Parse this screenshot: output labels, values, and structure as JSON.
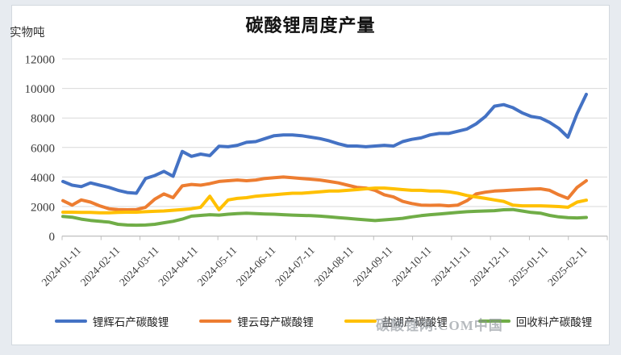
{
  "page": {
    "background": "#e7ebf0",
    "card_background": "#ffffff"
  },
  "header": {
    "title": "碳酸锂周度产量",
    "y_unit_label": "实物吨"
  },
  "watermark": {
    "text": "碳酸锂网.COM中国"
  },
  "chart_data": {
    "type": "line",
    "title": "碳酸锂周度产量",
    "ylabel": "实物吨",
    "ylim": [
      0,
      12000
    ],
    "y_ticks": [
      0,
      2000,
      4000,
      6000,
      8000,
      10000,
      12000
    ],
    "grid": true,
    "legend_position": "bottom",
    "x_tick_labels": [
      "2024-01-11",
      "2024-02-11",
      "2024-03-11",
      "2024-04-11",
      "2024-05-11",
      "2024-06-11",
      "2024-07-11",
      "2024-08-11",
      "2024-09-11",
      "2024-10-11",
      "2024-11-11",
      "2024-12-11",
      "2025-01-11",
      "2025-02-11"
    ],
    "x_dates": [
      "2024-01-11",
      "2024-01-18",
      "2024-01-25",
      "2024-02-01",
      "2024-02-08",
      "2024-02-15",
      "2024-02-22",
      "2024-02-29",
      "2024-03-07",
      "2024-03-14",
      "2024-03-21",
      "2024-03-28",
      "2024-04-04",
      "2024-04-11",
      "2024-04-18",
      "2024-04-25",
      "2024-05-02",
      "2024-05-09",
      "2024-05-16",
      "2024-05-23",
      "2024-05-30",
      "2024-06-06",
      "2024-06-13",
      "2024-06-20",
      "2024-06-27",
      "2024-07-04",
      "2024-07-11",
      "2024-07-18",
      "2024-07-25",
      "2024-08-01",
      "2024-08-08",
      "2024-08-15",
      "2024-08-22",
      "2024-08-29",
      "2024-09-05",
      "2024-09-12",
      "2024-09-19",
      "2024-09-26",
      "2024-10-03",
      "2024-10-10",
      "2024-10-17",
      "2024-10-24",
      "2024-10-31",
      "2024-11-07",
      "2024-11-14",
      "2024-11-21",
      "2024-11-28",
      "2024-12-05",
      "2024-12-12",
      "2024-12-19",
      "2024-12-26",
      "2025-01-02",
      "2025-01-09",
      "2025-01-16",
      "2025-01-23",
      "2025-01-30",
      "2025-02-06",
      "2025-02-13"
    ],
    "series": [
      {
        "name": "锂辉石产碳酸锂",
        "key": "spodumene",
        "color": "#4472C4",
        "values": [
          3700,
          3450,
          3350,
          3600,
          3450,
          3300,
          3100,
          2950,
          2900,
          3900,
          4100,
          4380,
          4050,
          5730,
          5400,
          5550,
          5450,
          6090,
          6050,
          6150,
          6350,
          6400,
          6600,
          6800,
          6850,
          6850,
          6800,
          6700,
          6600,
          6450,
          6250,
          6100,
          6100,
          6050,
          6100,
          6150,
          6100,
          6400,
          6550,
          6650,
          6850,
          6950,
          6950,
          7100,
          7250,
          7600,
          8100,
          8800,
          8900,
          8700,
          8350,
          8100,
          8000,
          7700,
          7300,
          6700,
          8300,
          9600
        ]
      },
      {
        "name": "锂云母产碳酸锂",
        "key": "lepidolite",
        "color": "#ED7D31",
        "values": [
          2400,
          2100,
          2450,
          2300,
          2050,
          1850,
          1800,
          1780,
          1800,
          1950,
          2500,
          2850,
          2600,
          3400,
          3500,
          3450,
          3550,
          3700,
          3750,
          3800,
          3750,
          3800,
          3900,
          3950,
          4000,
          3950,
          3900,
          3850,
          3800,
          3700,
          3600,
          3450,
          3300,
          3250,
          3100,
          2800,
          2650,
          2350,
          2200,
          2100,
          2080,
          2100,
          2050,
          2100,
          2400,
          2850,
          2970,
          3050,
          3080,
          3120,
          3150,
          3180,
          3200,
          3100,
          2800,
          2550,
          3300,
          3750
        ]
      },
      {
        "name": "盐湖产碳酸锂",
        "key": "salt-lake",
        "color": "#FFC000",
        "values": [
          1620,
          1620,
          1600,
          1600,
          1580,
          1580,
          1600,
          1620,
          1620,
          1650,
          1680,
          1700,
          1750,
          1800,
          1850,
          1950,
          2700,
          1780,
          2450,
          2550,
          2600,
          2700,
          2750,
          2800,
          2850,
          2900,
          2900,
          2950,
          3000,
          3050,
          3050,
          3100,
          3150,
          3200,
          3250,
          3250,
          3200,
          3150,
          3100,
          3100,
          3050,
          3050,
          3000,
          2900,
          2750,
          2650,
          2550,
          2450,
          2350,
          2100,
          2050,
          2050,
          2050,
          2030,
          2000,
          1950,
          2300,
          2430
        ]
      },
      {
        "name": "回收料产碳酸锂",
        "key": "recycled",
        "color": "#70AD47",
        "values": [
          1330,
          1280,
          1150,
          1060,
          1000,
          950,
          800,
          750,
          740,
          750,
          800,
          900,
          1000,
          1150,
          1350,
          1400,
          1450,
          1420,
          1480,
          1520,
          1550,
          1520,
          1500,
          1480,
          1450,
          1420,
          1400,
          1380,
          1350,
          1300,
          1250,
          1200,
          1150,
          1100,
          1050,
          1100,
          1150,
          1200,
          1300,
          1380,
          1450,
          1500,
          1550,
          1600,
          1650,
          1680,
          1700,
          1720,
          1780,
          1800,
          1700,
          1600,
          1550,
          1400,
          1300,
          1250,
          1230,
          1260
        ]
      }
    ]
  }
}
